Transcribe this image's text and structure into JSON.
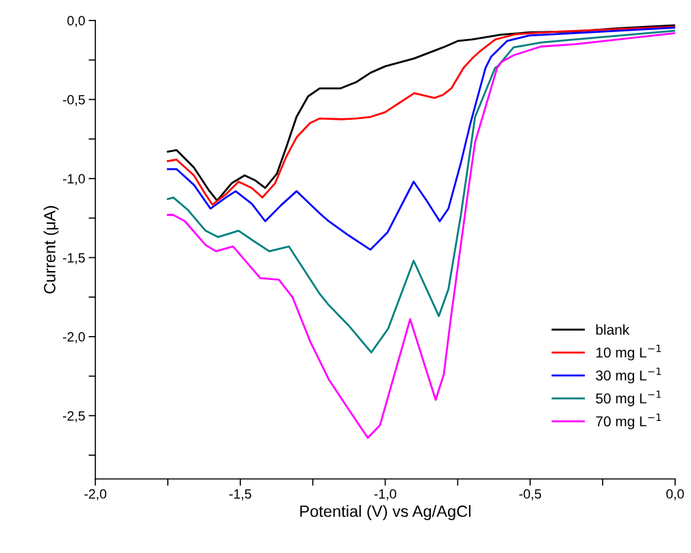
{
  "chart_data": {
    "type": "line",
    "xlabel": "Potential (V) vs Ag/AgCl",
    "ylabel": "Current (μA)",
    "xlim": [
      -2,
      0
    ],
    "ylim": [
      -2.9,
      0
    ],
    "xticks": [
      {
        "value": -2,
        "label": "-2,0"
      },
      {
        "value": -1.75,
        "label": null
      },
      {
        "value": -1.5,
        "label": "-1,5"
      },
      {
        "value": -1.25,
        "label": null
      },
      {
        "value": -1,
        "label": "-1,0"
      },
      {
        "value": -0.75,
        "label": null
      },
      {
        "value": -0.5,
        "label": "-0,5"
      },
      {
        "value": -0.25,
        "label": null
      },
      {
        "value": 0,
        "label": "0,0"
      }
    ],
    "yticks": [
      {
        "value": 0,
        "label": "0,0"
      },
      {
        "value": -0.25,
        "label": null
      },
      {
        "value": -0.5,
        "label": "-0,5"
      },
      {
        "value": -0.75,
        "label": null
      },
      {
        "value": -1,
        "label": "-1,0"
      },
      {
        "value": -1.25,
        "label": null
      },
      {
        "value": -1.5,
        "label": "-1,5"
      },
      {
        "value": -1.75,
        "label": null
      },
      {
        "value": -2,
        "label": "-2,0"
      },
      {
        "value": -2.25,
        "label": null
      },
      {
        "value": -2.5,
        "label": "-2,5"
      },
      {
        "value": -2.75,
        "label": null
      }
    ],
    "grid": false,
    "legend": "bottom right",
    "marker": "none",
    "line_style": "solid",
    "series": [
      {
        "name": "blank",
        "color": "#000000",
        "x": [
          -1.75,
          -1.72,
          -1.66,
          -1.61,
          -1.58,
          -1.53,
          -1.485,
          -1.45,
          -1.414,
          -1.374,
          -1.341,
          -1.306,
          -1.266,
          -1.226,
          -1.155,
          -1.1,
          -1.05,
          -1.0,
          -0.9,
          -0.8,
          -0.75,
          -0.7,
          -0.6,
          -0.5,
          -0.35,
          -0.2,
          0.0
        ],
        "values": [
          -0.83,
          -0.82,
          -0.93,
          -1.07,
          -1.14,
          -1.03,
          -0.98,
          -1.01,
          -1.06,
          -0.97,
          -0.8,
          -0.61,
          -0.48,
          -0.43,
          -0.43,
          -0.39,
          -0.33,
          -0.29,
          -0.24,
          -0.17,
          -0.13,
          -0.12,
          -0.09,
          -0.075,
          -0.07,
          -0.05,
          -0.03
        ]
      },
      {
        "name": "10 mg L$^{−1}$",
        "color": "#ff0000",
        "x": [
          -1.75,
          -1.72,
          -1.66,
          -1.62,
          -1.596,
          -1.55,
          -1.506,
          -1.46,
          -1.424,
          -1.38,
          -1.341,
          -1.306,
          -1.26,
          -1.226,
          -1.15,
          -1.1,
          -1.05,
          -1.0,
          -0.95,
          -0.9,
          -0.83,
          -0.8,
          -0.772,
          -0.73,
          -0.7,
          -0.67,
          -0.62,
          -0.55,
          -0.4,
          -0.2,
          0.0
        ],
        "values": [
          -0.89,
          -0.88,
          -0.98,
          -1.1,
          -1.165,
          -1.1,
          -1.02,
          -1.06,
          -1.12,
          -1.03,
          -0.86,
          -0.74,
          -0.65,
          -0.62,
          -0.625,
          -0.62,
          -0.61,
          -0.58,
          -0.52,
          -0.46,
          -0.49,
          -0.47,
          -0.43,
          -0.3,
          -0.24,
          -0.19,
          -0.12,
          -0.087,
          -0.07,
          -0.055,
          -0.04
        ]
      },
      {
        "name": "30 mg L$^{−1}$",
        "color": "#0000ff",
        "x": [
          -1.75,
          -1.72,
          -1.66,
          -1.603,
          -1.55,
          -1.516,
          -1.46,
          -1.414,
          -1.36,
          -1.306,
          -1.226,
          -1.195,
          -1.126,
          -1.051,
          -0.992,
          -0.902,
          -0.857,
          -0.812,
          -0.782,
          -0.739,
          -0.706,
          -0.654,
          -0.635,
          -0.58,
          -0.503,
          -0.345,
          0.0
        ],
        "values": [
          -0.94,
          -0.94,
          -1.04,
          -1.19,
          -1.12,
          -1.08,
          -1.16,
          -1.27,
          -1.17,
          -1.08,
          -1.22,
          -1.27,
          -1.36,
          -1.45,
          -1.34,
          -1.02,
          -1.14,
          -1.27,
          -1.19,
          -0.9,
          -0.65,
          -0.3,
          -0.23,
          -0.13,
          -0.095,
          -0.08,
          -0.045
        ]
      },
      {
        "name": "50 mg L$^{−1}$",
        "color": "#008080",
        "x": [
          -1.75,
          -1.731,
          -1.68,
          -1.62,
          -1.577,
          -1.506,
          -1.45,
          -1.4,
          -1.332,
          -1.226,
          -1.195,
          -1.126,
          -1.048,
          -0.99,
          -0.902,
          -0.815,
          -0.782,
          -0.739,
          -0.69,
          -0.621,
          -0.612,
          -0.557,
          -0.463,
          -0.345,
          0.0
        ],
        "values": [
          -1.13,
          -1.12,
          -1.2,
          -1.33,
          -1.37,
          -1.33,
          -1.4,
          -1.46,
          -1.43,
          -1.73,
          -1.8,
          -1.93,
          -2.1,
          -1.95,
          -1.52,
          -1.87,
          -1.7,
          -1.23,
          -0.61,
          -0.3,
          -0.29,
          -0.17,
          -0.14,
          -0.12,
          -0.065
        ]
      },
      {
        "name": "70 mg L$^{−1}$",
        "color": "#ff00ff",
        "x": [
          -1.75,
          -1.731,
          -1.691,
          -1.62,
          -1.584,
          -1.525,
          -1.431,
          -1.367,
          -1.32,
          -1.259,
          -1.195,
          -1.119,
          -1.06,
          -1.018,
          -0.914,
          -0.826,
          -0.798,
          -0.772,
          -0.714,
          -0.69,
          -0.614,
          -0.597,
          -0.557,
          -0.463,
          -0.345,
          0.0
        ],
        "values": [
          -1.23,
          -1.23,
          -1.27,
          -1.42,
          -1.46,
          -1.43,
          -1.63,
          -1.64,
          -1.75,
          -2.03,
          -2.27,
          -2.48,
          -2.64,
          -2.56,
          -1.89,
          -2.4,
          -2.24,
          -1.86,
          -1.08,
          -0.77,
          -0.3,
          -0.26,
          -0.22,
          -0.165,
          -0.15,
          -0.08
        ]
      }
    ]
  }
}
